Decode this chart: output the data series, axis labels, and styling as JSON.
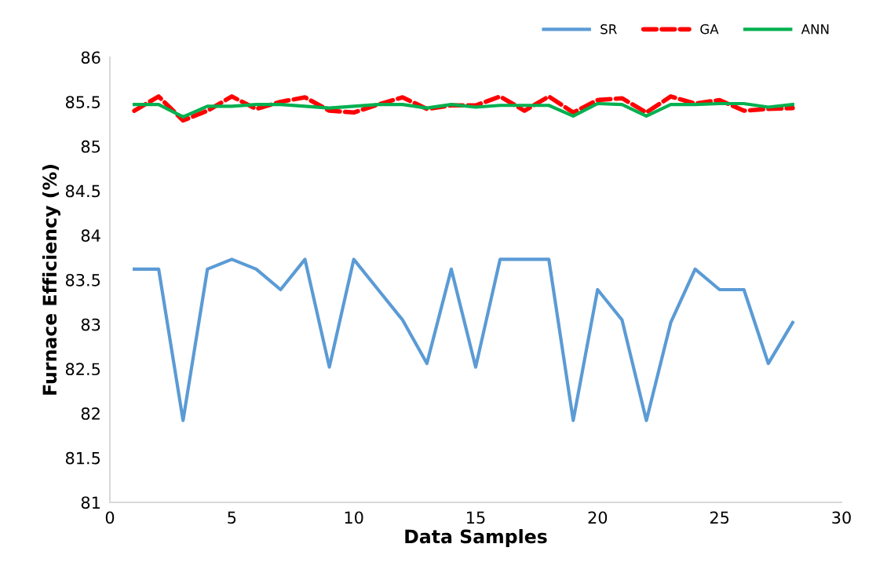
{
  "chart_data": {
    "type": "line",
    "xlabel": "Data Samples",
    "ylabel": "Furnace Efficiency (%)",
    "x": [
      1,
      2,
      3,
      4,
      5,
      6,
      7,
      8,
      9,
      10,
      11,
      12,
      13,
      14,
      15,
      16,
      17,
      18,
      19,
      20,
      21,
      22,
      23,
      24,
      25,
      26,
      27,
      28
    ],
    "series": [
      {
        "name": "SR",
        "color": "#5b9bd5",
        "line_style": "solid",
        "values": [
          83.62,
          83.62,
          81.92,
          83.62,
          83.73,
          83.62,
          83.39,
          83.73,
          82.52,
          83.73,
          83.39,
          83.05,
          82.56,
          83.62,
          82.52,
          83.73,
          83.73,
          83.73,
          81.92,
          83.39,
          83.05,
          81.92,
          83.02,
          83.62,
          83.39,
          83.39,
          82.56,
          83.02
        ]
      },
      {
        "name": "GA",
        "color": "#ff0000",
        "line_style": "dashed",
        "values": [
          85.4,
          85.56,
          85.29,
          85.4,
          85.56,
          85.42,
          85.5,
          85.55,
          85.4,
          85.38,
          85.47,
          85.55,
          85.42,
          85.46,
          85.46,
          85.56,
          85.4,
          85.56,
          85.38,
          85.52,
          85.54,
          85.38,
          85.56,
          85.48,
          85.52,
          85.4,
          85.42,
          85.43
        ]
      },
      {
        "name": "ANN",
        "color": "#00b050",
        "line_style": "solid",
        "values": [
          85.47,
          85.47,
          85.33,
          85.45,
          85.45,
          85.47,
          85.47,
          85.45,
          85.43,
          85.45,
          85.47,
          85.47,
          85.43,
          85.47,
          85.44,
          85.46,
          85.46,
          85.46,
          85.34,
          85.48,
          85.47,
          85.34,
          85.47,
          85.47,
          85.48,
          85.48,
          85.44,
          85.47
        ]
      }
    ],
    "xlim": [
      0,
      30
    ],
    "xticks": [
      0,
      5,
      10,
      15,
      20,
      25,
      30
    ],
    "ylim": [
      81,
      86
    ],
    "yticks": [
      81,
      {
        "value": 81.5,
        "label": "81.5"
      },
      82,
      {
        "value": 82.5,
        "label": "82.5"
      },
      83,
      {
        "value": 83.5,
        "label": "83.5"
      },
      84,
      {
        "value": 84.5,
        "label": "84.5"
      },
      85,
      {
        "value": 85.5,
        "label": "85.5"
      },
      86
    ],
    "grid": false,
    "legend": "top right",
    "marker": "none"
  }
}
